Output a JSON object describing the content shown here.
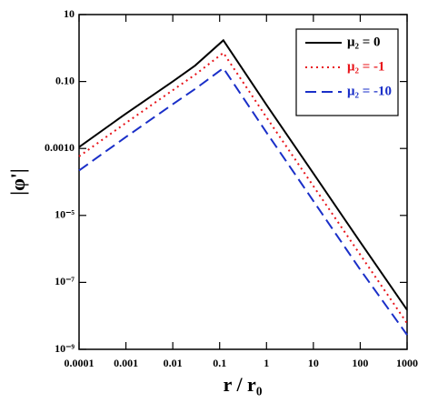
{
  "chart_data": {
    "type": "line",
    "xlabel": "r / r₀",
    "ylabel": "|φ'|",
    "x": [
      0.0001,
      0.001,
      0.01,
      0.03,
      0.12,
      1,
      10,
      100,
      1000
    ],
    "series": [
      {
        "name": "μ₂ = 0",
        "color": "#000000",
        "style": "solid",
        "values": [
          0.0011,
          0.011,
          0.1,
          0.3,
          1.7,
          0.02,
          0.00018,
          1.6e-06,
          1.5e-08
        ]
      },
      {
        "name": "μ₂ = -1",
        "color": "#e8141a",
        "style": "dotted",
        "values": [
          0.00058,
          0.0058,
          0.055,
          0.16,
          0.72,
          0.0085,
          7.5e-05,
          6.7e-07,
          6e-09
        ]
      },
      {
        "name": "μ₂ = -10",
        "color": "#1a2fc8",
        "style": "dashed",
        "values": [
          0.00022,
          0.0022,
          0.021,
          0.06,
          0.25,
          0.003,
          2.7e-05,
          2.4e-07,
          2.7e-09
        ]
      }
    ],
    "xscale": "log",
    "yscale": "log",
    "xlim": [
      0.0001,
      1000
    ],
    "ylim": [
      1e-09,
      10
    ],
    "xticks": [
      0.0001,
      0.001,
      0.01,
      0.1,
      1,
      10,
      100,
      1000
    ],
    "yticks": [
      10,
      {
        "value": 0.1,
        "label": "0.10"
      },
      {
        "value": 0.001,
        "label": "0.0010"
      },
      {
        "value": 1e-05,
        "label": "10⁻⁵"
      },
      {
        "value": 1e-07,
        "label": "10⁻⁷"
      },
      {
        "value": 1e-09,
        "label": "10⁻⁹"
      }
    ],
    "legend": "upper right"
  }
}
